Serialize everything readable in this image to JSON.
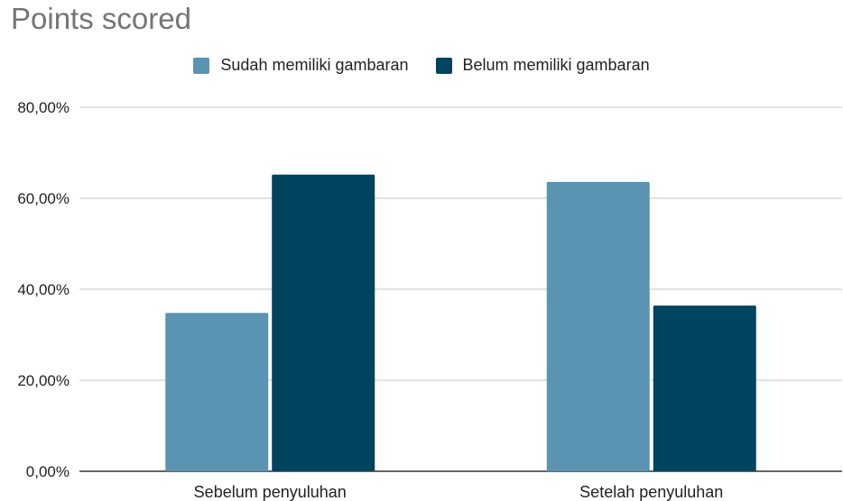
{
  "chart_data": {
    "type": "bar",
    "title": "Points scored",
    "categories": [
      "Sebelum penyuluhan",
      "Setelah penyuluhan"
    ],
    "series": [
      {
        "name": "Sudah memiliki gambaran",
        "color": "#5b93b3",
        "values": [
          34.8,
          63.6
        ]
      },
      {
        "name": "Belum memiliki gambaran",
        "color": "#01445f",
        "values": [
          65.2,
          36.4
        ]
      }
    ],
    "yticks": [
      "0,00%",
      "20,00%",
      "40,00%",
      "60,00%",
      "80,00%"
    ],
    "ylim": [
      0,
      80
    ],
    "xlabel": "",
    "ylabel": "",
    "legend_position": "top",
    "grid": true
  }
}
